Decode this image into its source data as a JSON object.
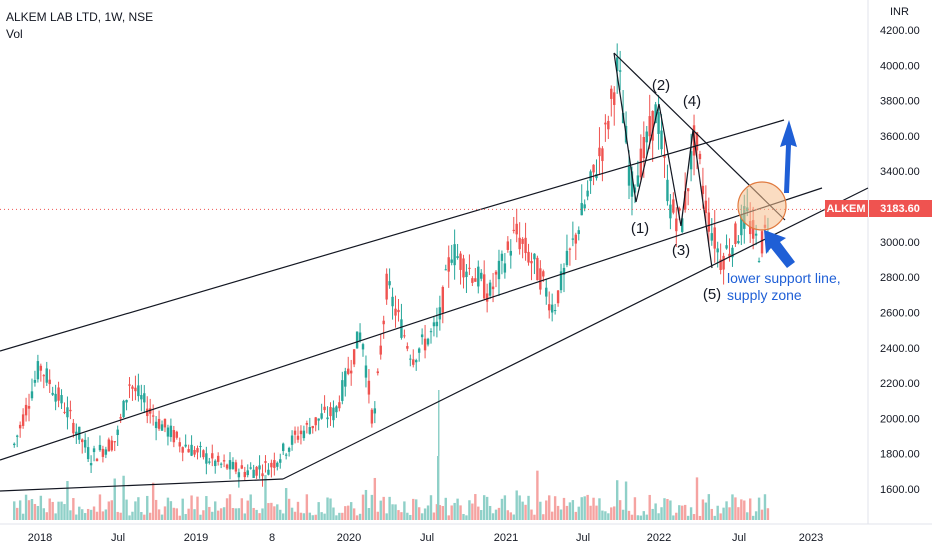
{
  "header": {
    "title": "ALKEM LAB LTD, 1W, NSE",
    "volume_label": "Vol"
  },
  "price_tag": {
    "symbol": "ALKEM",
    "value": "3183.60"
  },
  "colors": {
    "up": "#26a69a",
    "down": "#ef5350",
    "volume_up": "#8fd0c8",
    "volume_down": "#f5a3a1",
    "price_line": "#ef5350",
    "trend_line": "#131722",
    "arrow": "#1f5fd6",
    "highlight_fill": "#f6c08e",
    "highlight_stroke": "#e07a3f"
  },
  "chart_data": {
    "type": "candlestick",
    "y_axis": {
      "label": "INR",
      "ticks": [
        "4200.00",
        "4000.00",
        "3800.00",
        "3600.00",
        "3400.00",
        "3200.00",
        "3000.00",
        "2800.00",
        "2600.00",
        "2400.00",
        "2200.00",
        "2000.00",
        "1800.00",
        "1600.00"
      ],
      "range": [
        1400,
        4200
      ]
    },
    "x_axis": {
      "ticks": [
        "2018",
        "Jul",
        "2019",
        "8",
        "2020",
        "Jul",
        "2021",
        "Jul",
        "2022",
        "Jul",
        "2023"
      ]
    },
    "current_price": 3183.6,
    "price_path": [
      [
        "2017-11",
        1850
      ],
      [
        "2018-01",
        2300
      ],
      [
        "2018-03",
        2060
      ],
      [
        "2018-05",
        1780
      ],
      [
        "2018-07",
        1880
      ],
      [
        "2018-08",
        2200
      ],
      [
        "2018-10",
        2000
      ],
      [
        "2018-12",
        1860
      ],
      [
        "2019-03",
        1740
      ],
      [
        "2019-05",
        1700
      ],
      [
        "2019-07",
        1730
      ],
      [
        "2019-09",
        1900
      ],
      [
        "2019-11",
        2010
      ],
      [
        "2019-12",
        2030
      ],
      [
        "2020-02",
        2500
      ],
      [
        "2020-03",
        1950
      ],
      [
        "2020-04",
        2750
      ],
      [
        "2020-06",
        2350
      ],
      [
        "2020-08",
        2520
      ],
      [
        "2020-09",
        2950
      ],
      [
        "2020-11",
        2800
      ],
      [
        "2020-12",
        2700
      ],
      [
        "2021-02",
        3050
      ],
      [
        "2021-04",
        2800
      ],
      [
        "2021-05",
        2620
      ],
      [
        "2021-07",
        3100
      ],
      [
        "2021-09",
        3600
      ],
      [
        "2021-10",
        4000
      ],
      [
        "2021-11",
        3300
      ],
      [
        "2021-12",
        3500
      ],
      [
        "2022-01",
        3750
      ],
      [
        "2022-02",
        3200
      ],
      [
        "2022-03",
        3100
      ],
      [
        "2022-04",
        3600
      ],
      [
        "2022-05",
        3150
      ],
      [
        "2022-06",
        2900
      ],
      [
        "2022-07",
        3000
      ],
      [
        "2022-08",
        3150
      ],
      [
        "2022-09",
        2950
      ],
      [
        "2022-10",
        3183.6
      ]
    ],
    "annotations": [
      {
        "label": "(1)",
        "date": "2021-11",
        "price": 3150
      },
      {
        "label": "(2)",
        "date": "2022-01",
        "price": 3900
      },
      {
        "label": "(3)",
        "date": "2022-03",
        "price": 2980
      },
      {
        "label": "(4)",
        "date": "2022-05",
        "price": 3750
      },
      {
        "label": "(5)",
        "date": "2022-06",
        "price": 2700
      }
    ],
    "note": [
      "lower support line,",
      "supply zone"
    ]
  }
}
